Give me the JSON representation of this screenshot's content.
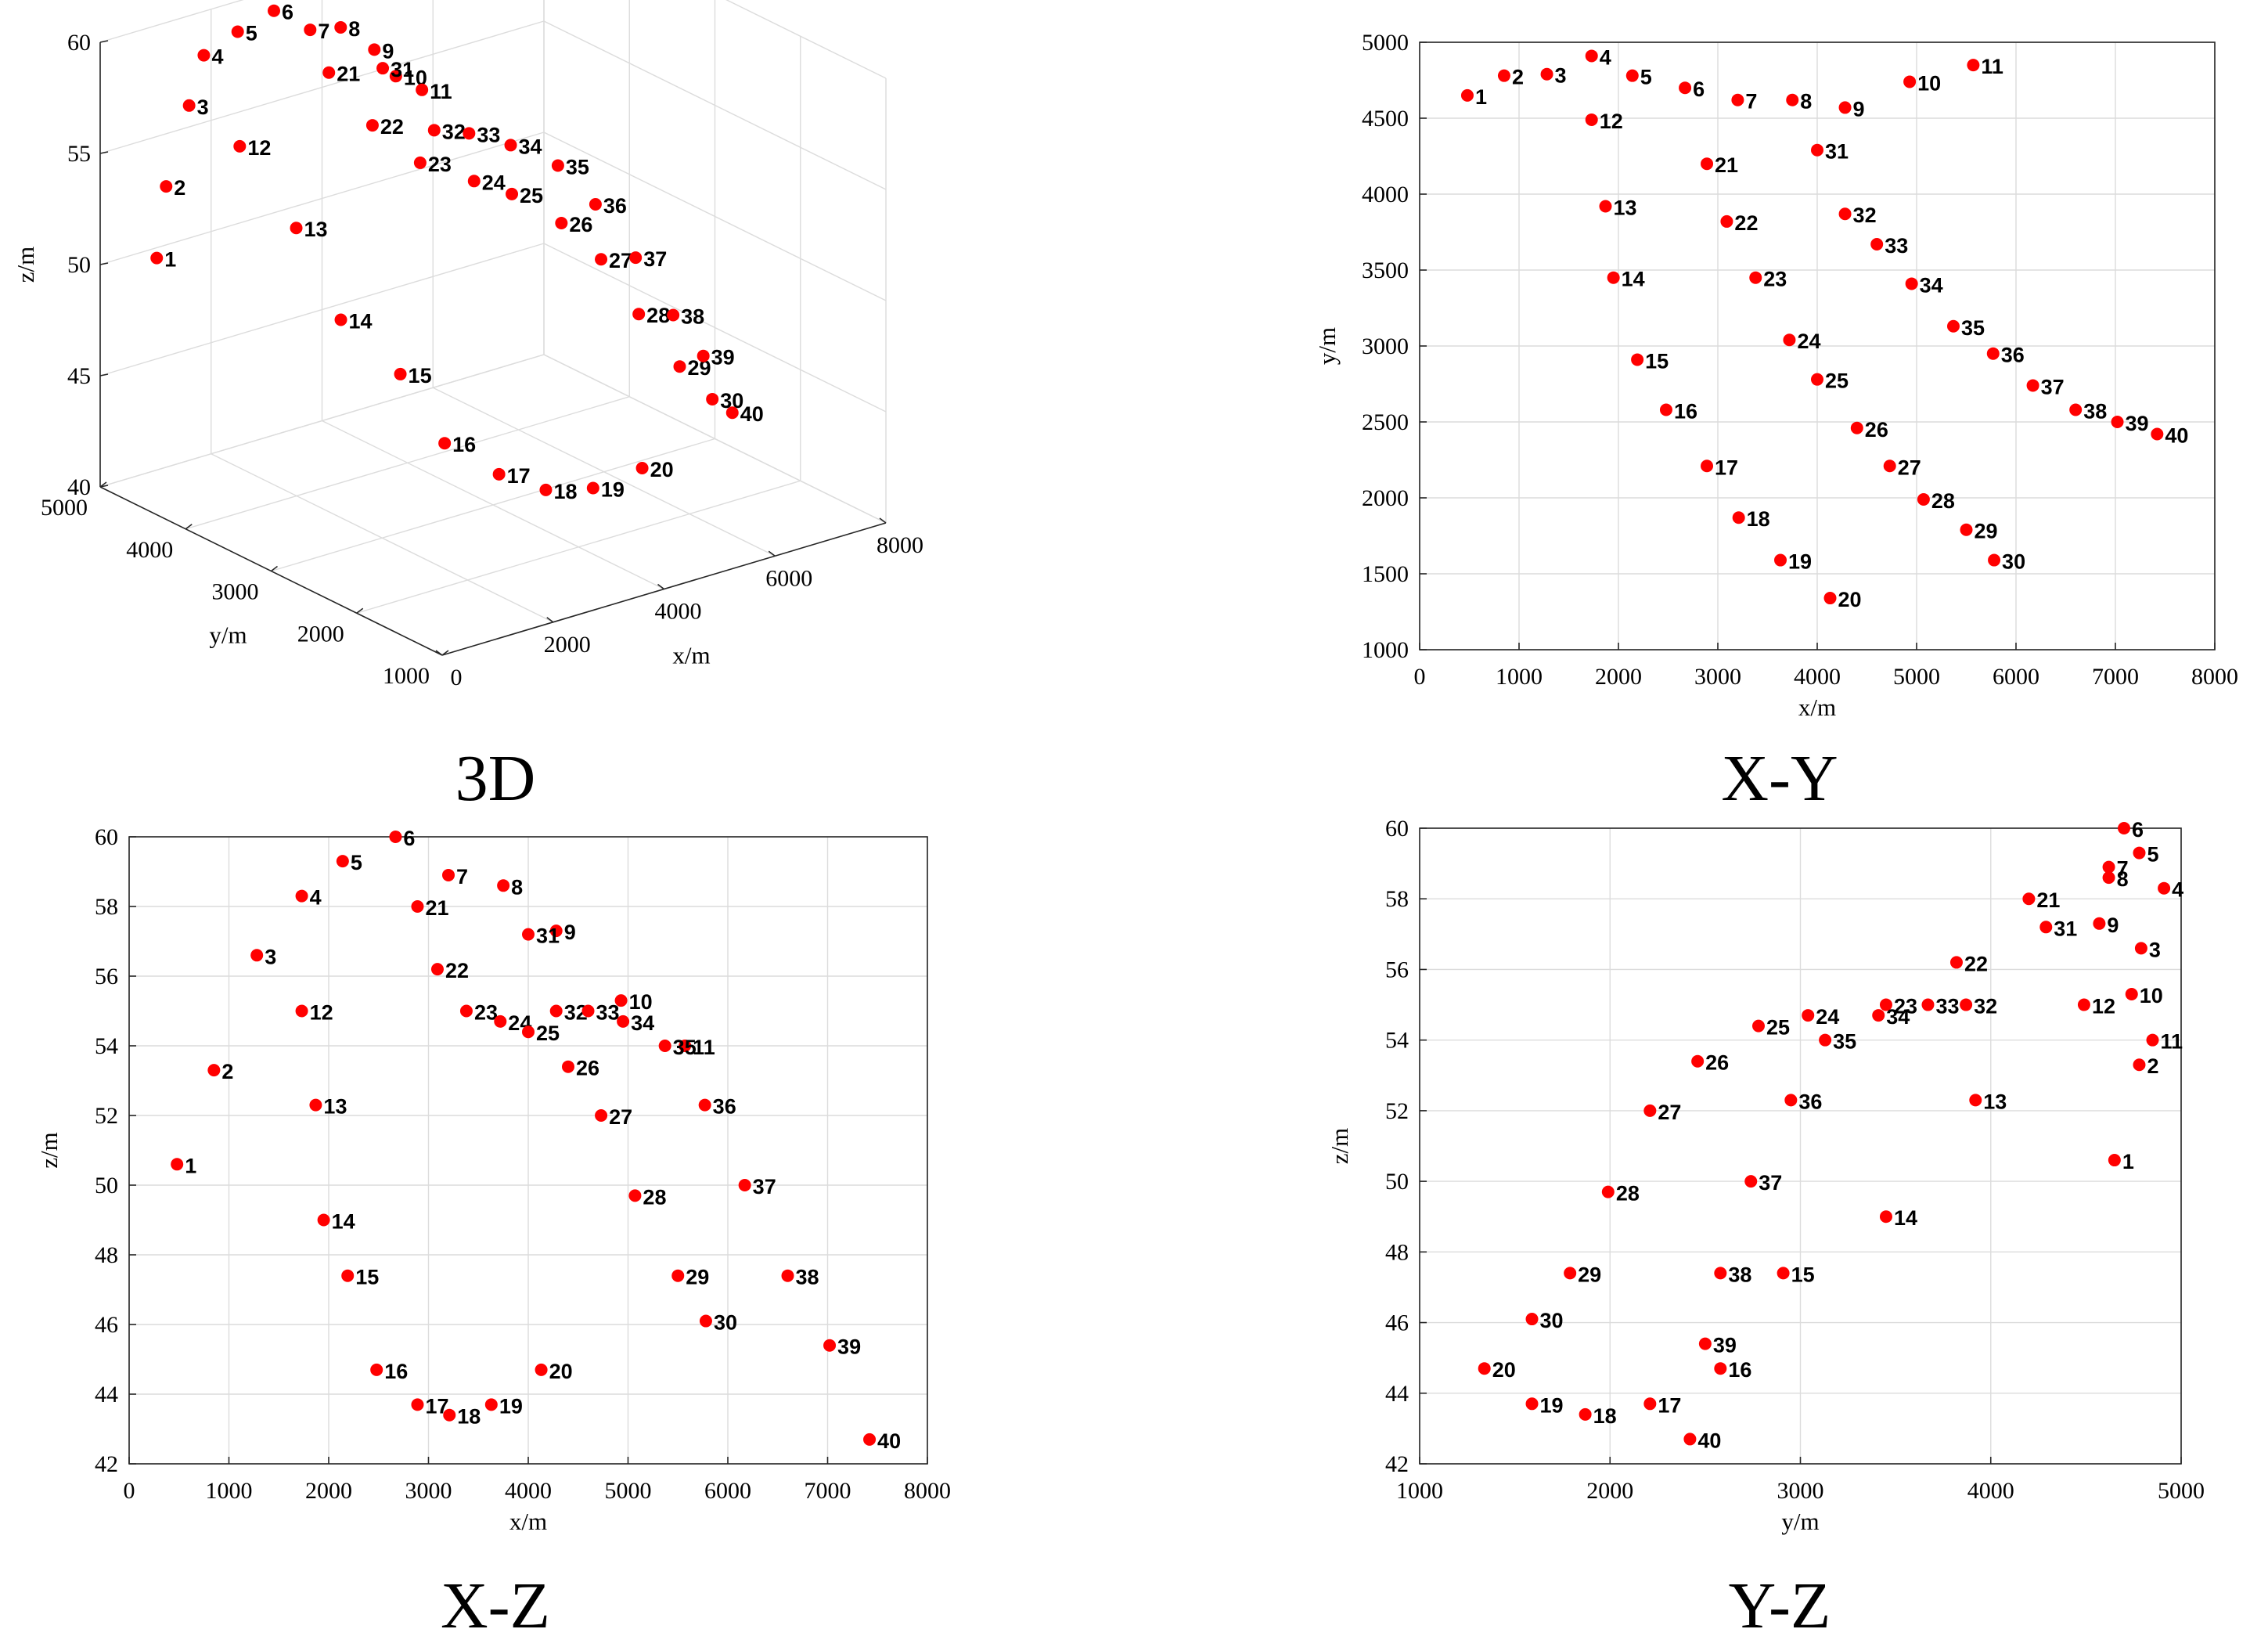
{
  "chart_data": [
    {
      "type": "scatter",
      "view": "3d",
      "title": "3D",
      "xlabel": "x/m",
      "ylabel": "y/m",
      "zlabel": "z/m",
      "xlim": [
        0,
        8000
      ],
      "ylim": [
        1000,
        5000
      ],
      "zlim": [
        40,
        60
      ],
      "xticks": [
        0,
        2000,
        4000,
        6000,
        8000
      ],
      "yticks": [
        1000,
        2000,
        3000,
        4000,
        5000
      ],
      "zticks": [
        40,
        45,
        50,
        55,
        60
      ],
      "point_color": "#ff0000",
      "grid": true
    },
    {
      "type": "scatter",
      "view": "xy",
      "title": "X-Y",
      "xlabel": "x/m",
      "ylabel": "y/m",
      "xlim": [
        0,
        8000
      ],
      "ylim": [
        1000,
        5000
      ],
      "xticks": [
        0,
        1000,
        2000,
        3000,
        4000,
        5000,
        6000,
        7000,
        8000
      ],
      "yticks": [
        1000,
        1500,
        2000,
        2500,
        3000,
        3500,
        4000,
        4500,
        5000
      ],
      "point_color": "#ff0000",
      "grid": true
    },
    {
      "type": "scatter",
      "view": "xz",
      "title": "X-Z",
      "xlabel": "x/m",
      "ylabel": "z/m",
      "xlim": [
        0,
        8000
      ],
      "ylim": [
        42,
        60
      ],
      "xticks": [
        0,
        1000,
        2000,
        3000,
        4000,
        5000,
        6000,
        7000,
        8000
      ],
      "yticks": [
        42,
        44,
        46,
        48,
        50,
        52,
        54,
        56,
        58,
        60
      ],
      "point_color": "#ff0000",
      "grid": true
    },
    {
      "type": "scatter",
      "view": "yz",
      "title": "Y-Z",
      "xlabel": "y/m",
      "ylabel": "z/m",
      "xlim": [
        1000,
        5000
      ],
      "ylim": [
        42,
        60
      ],
      "xticks": [
        1000,
        2000,
        3000,
        4000,
        5000
      ],
      "yticks": [
        42,
        44,
        46,
        48,
        50,
        52,
        54,
        56,
        58,
        60
      ],
      "point_color": "#ff0000",
      "grid": true
    }
  ],
  "points": [
    {
      "id": "1",
      "x": 480,
      "y": 4650,
      "z": 50.6
    },
    {
      "id": "2",
      "x": 850,
      "y": 4780,
      "z": 53.3
    },
    {
      "id": "3",
      "x": 1280,
      "y": 4790,
      "z": 56.6
    },
    {
      "id": "4",
      "x": 1730,
      "y": 4910,
      "z": 58.3
    },
    {
      "id": "5",
      "x": 2140,
      "y": 4780,
      "z": 59.3
    },
    {
      "id": "6",
      "x": 2670,
      "y": 4700,
      "z": 60.0
    },
    {
      "id": "7",
      "x": 3200,
      "y": 4620,
      "z": 58.9
    },
    {
      "id": "8",
      "x": 3750,
      "y": 4620,
      "z": 58.6
    },
    {
      "id": "9",
      "x": 4280,
      "y": 4570,
      "z": 57.3
    },
    {
      "id": "10",
      "x": 4930,
      "y": 4740,
      "z": 55.3
    },
    {
      "id": "11",
      "x": 5570,
      "y": 4850,
      "z": 54.0
    },
    {
      "id": "12",
      "x": 1730,
      "y": 4490,
      "z": 55.0
    },
    {
      "id": "13",
      "x": 1870,
      "y": 3920,
      "z": 52.3
    },
    {
      "id": "14",
      "x": 1950,
      "y": 3450,
      "z": 49.0
    },
    {
      "id": "15",
      "x": 2190,
      "y": 2910,
      "z": 47.4
    },
    {
      "id": "16",
      "x": 2480,
      "y": 2580,
      "z": 44.7
    },
    {
      "id": "17",
      "x": 2890,
      "y": 2210,
      "z": 43.7
    },
    {
      "id": "18",
      "x": 3210,
      "y": 1870,
      "z": 43.4
    },
    {
      "id": "19",
      "x": 3630,
      "y": 1590,
      "z": 43.7
    },
    {
      "id": "20",
      "x": 4130,
      "y": 1340,
      "z": 44.7
    },
    {
      "id": "21",
      "x": 2890,
      "y": 4200,
      "z": 58.0
    },
    {
      "id": "22",
      "x": 3090,
      "y": 3820,
      "z": 56.2
    },
    {
      "id": "23",
      "x": 3380,
      "y": 3450,
      "z": 55.0
    },
    {
      "id": "24",
      "x": 3720,
      "y": 3040,
      "z": 54.7
    },
    {
      "id": "25",
      "x": 4000,
      "y": 2780,
      "z": 54.4
    },
    {
      "id": "26",
      "x": 4400,
      "y": 2460,
      "z": 53.4
    },
    {
      "id": "27",
      "x": 4730,
      "y": 2210,
      "z": 52.0
    },
    {
      "id": "28",
      "x": 5070,
      "y": 1990,
      "z": 49.7
    },
    {
      "id": "29",
      "x": 5500,
      "y": 1790,
      "z": 47.4
    },
    {
      "id": "30",
      "x": 5780,
      "y": 1590,
      "z": 46.1
    },
    {
      "id": "31",
      "x": 4000,
      "y": 4290,
      "z": 57.2
    },
    {
      "id": "32",
      "x": 4280,
      "y": 3870,
      "z": 55.0
    },
    {
      "id": "33",
      "x": 4600,
      "y": 3670,
      "z": 55.0
    },
    {
      "id": "34",
      "x": 4950,
      "y": 3410,
      "z": 54.7
    },
    {
      "id": "35",
      "x": 5370,
      "y": 3130,
      "z": 54.0
    },
    {
      "id": "36",
      "x": 5770,
      "y": 2950,
      "z": 52.3
    },
    {
      "id": "37",
      "x": 6170,
      "y": 2740,
      "z": 50.0
    },
    {
      "id": "38",
      "x": 6600,
      "y": 2580,
      "z": 47.4
    },
    {
      "id": "39",
      "x": 7020,
      "y": 2500,
      "z": 45.4
    },
    {
      "id": "40",
      "x": 7420,
      "y": 2420,
      "z": 42.7
    }
  ]
}
